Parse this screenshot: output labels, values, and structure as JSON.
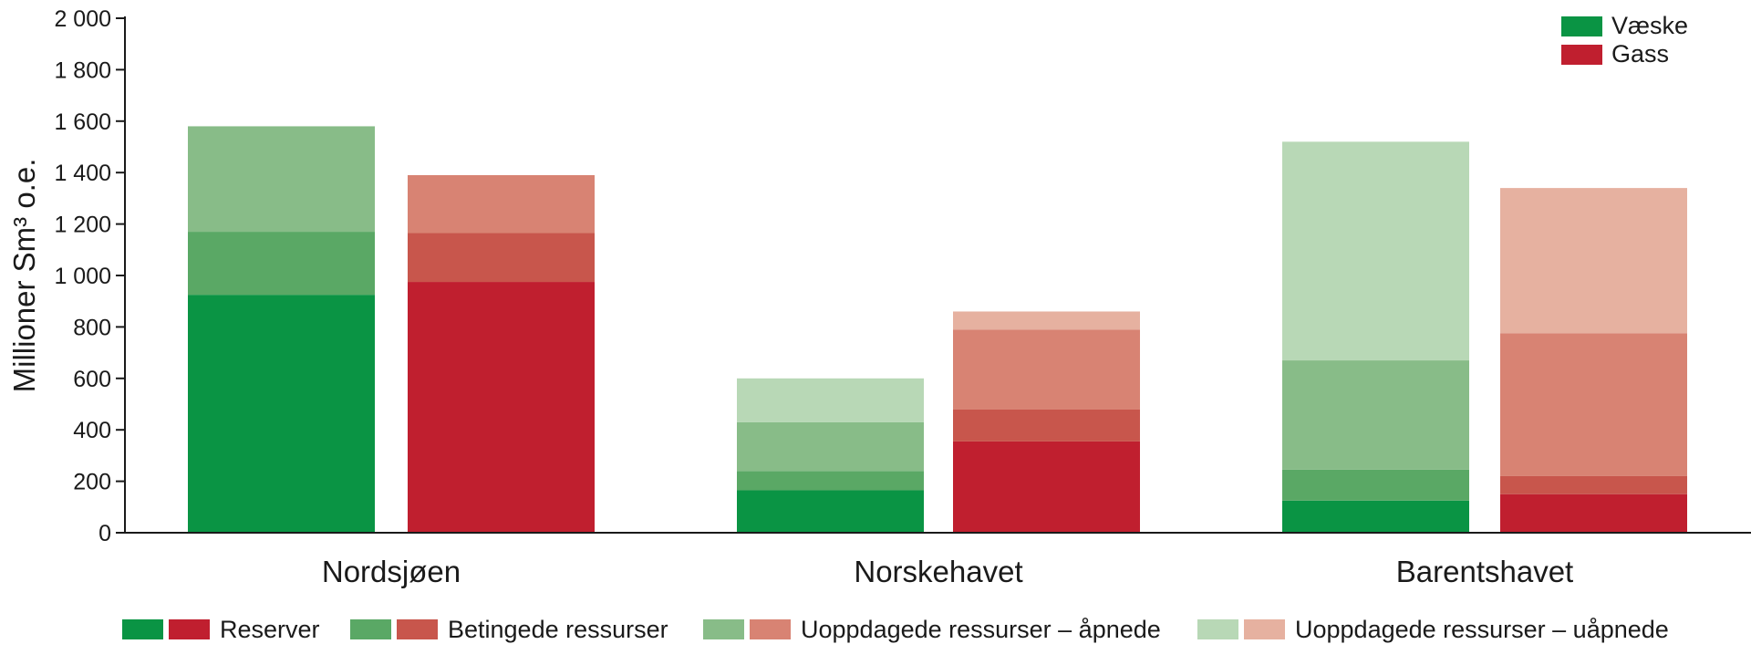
{
  "chart_data": {
    "type": "bar",
    "stacked": true,
    "ylabel": "Millioner Sm³ o.e.",
    "ylim": [
      0,
      2000
    ],
    "yticks": [
      0,
      200,
      400,
      600,
      800,
      1000,
      1200,
      1400,
      1600,
      1800,
      2000
    ],
    "ytick_labels": [
      "0",
      "200",
      "400",
      "600",
      "800",
      "1 000",
      "1 200",
      "1 400",
      "1 600",
      "1 800",
      "2 000"
    ],
    "categories": [
      "Nordsjøen",
      "Norskehavet",
      "Barentshavet"
    ],
    "groups": [
      "Væske",
      "Gass"
    ],
    "stack_levels": [
      "Reserver",
      "Betingede ressurser",
      "Uoppdagede ressurser – åpnede",
      "Uoppdagede ressurser – uåpnede"
    ],
    "series": [
      {
        "group": "Væske",
        "level": "Reserver",
        "color": "#0a9444",
        "values": [
          925,
          165,
          125
        ]
      },
      {
        "group": "Væske",
        "level": "Betingede ressurser",
        "color": "#5aa865",
        "values": [
          245,
          75,
          120
        ]
      },
      {
        "group": "Væske",
        "level": "Uoppdagede ressurser – åpnede",
        "color": "#88bc88",
        "values": [
          410,
          190,
          425
        ]
      },
      {
        "group": "Væske",
        "level": "Uoppdagede ressurser – uåpnede",
        "color": "#b8d8b6",
        "values": [
          0,
          170,
          850
        ]
      },
      {
        "group": "Gass",
        "level": "Reserver",
        "color": "#c01f2f",
        "values": [
          975,
          355,
          150
        ]
      },
      {
        "group": "Gass",
        "level": "Betingede ressurser",
        "color": "#c8564c",
        "values": [
          190,
          125,
          70
        ]
      },
      {
        "group": "Gass",
        "level": "Uoppdagede ressurser – åpnede",
        "color": "#d88373",
        "values": [
          225,
          310,
          555
        ]
      },
      {
        "group": "Gass",
        "level": "Uoppdagede ressurser – uåpnede",
        "color": "#e6b1a0",
        "values": [
          0,
          70,
          565
        ]
      }
    ],
    "legend_groups": [
      {
        "label": "Væske",
        "color": "#0a9444"
      },
      {
        "label": "Gass",
        "color": "#c01f2f"
      }
    ],
    "legend_levels": [
      {
        "label": "Reserver",
        "colors": [
          "#0a9444",
          "#c01f2f"
        ]
      },
      {
        "label": "Betingede ressurser",
        "colors": [
          "#5aa865",
          "#c8564c"
        ]
      },
      {
        "label": "Uoppdagede ressurser – åpnede",
        "colors": [
          "#88bc88",
          "#d88373"
        ]
      },
      {
        "label": "Uoppdagede ressurser – uåpnede",
        "colors": [
          "#b8d8b6",
          "#e6b1a0"
        ]
      }
    ],
    "legend_groups_position": "top-right",
    "legend_levels_position": "bottom",
    "grid": false
  }
}
